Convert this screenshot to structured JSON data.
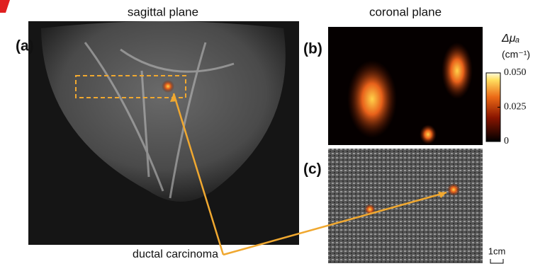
{
  "panels": {
    "a": {
      "label": "(a)",
      "title": "sagittal plane"
    },
    "b": {
      "label": "(b)",
      "title": "coronal plane"
    },
    "c": {
      "label": "(c)"
    }
  },
  "colorbar": {
    "label": "Δμₐ",
    "unit": "(cm⁻¹)",
    "lim": [
      0,
      0.05
    ],
    "ticks": [
      0,
      0.025,
      {
        "value": 0.05,
        "label": "0.050"
      }
    ]
  },
  "annotation": "ductal carcinoma",
  "scale_bar": "1cm"
}
